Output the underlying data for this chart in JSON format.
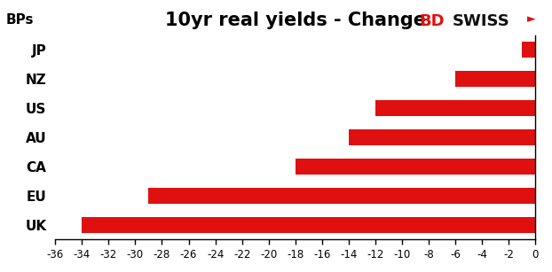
{
  "title": "10yr real yields - Change",
  "ylabel_text": "BPs",
  "categories": [
    "UK",
    "EU",
    "CA",
    "AU",
    "US",
    "NZ",
    "JP"
  ],
  "values": [
    -34,
    -29,
    -18,
    -14,
    -12,
    -6,
    -1
  ],
  "bar_color": "#e01010",
  "xlim": [
    -36,
    0
  ],
  "xticks": [
    -36,
    -34,
    -32,
    -30,
    -28,
    -26,
    -24,
    -22,
    -20,
    -18,
    -16,
    -14,
    -12,
    -10,
    -8,
    -6,
    -4,
    -2,
    0
  ],
  "background_color": "#ffffff",
  "title_fontsize": 15,
  "tick_fontsize": 8.5,
  "label_fontsize": 11,
  "bar_height": 0.55,
  "logo_bd": "BD",
  "logo_swiss": "SWISS",
  "logo_arrow": "►",
  "logo_color_bd": "#e01010",
  "logo_color_swiss": "#111111",
  "logo_color_arrow": "#e01010"
}
